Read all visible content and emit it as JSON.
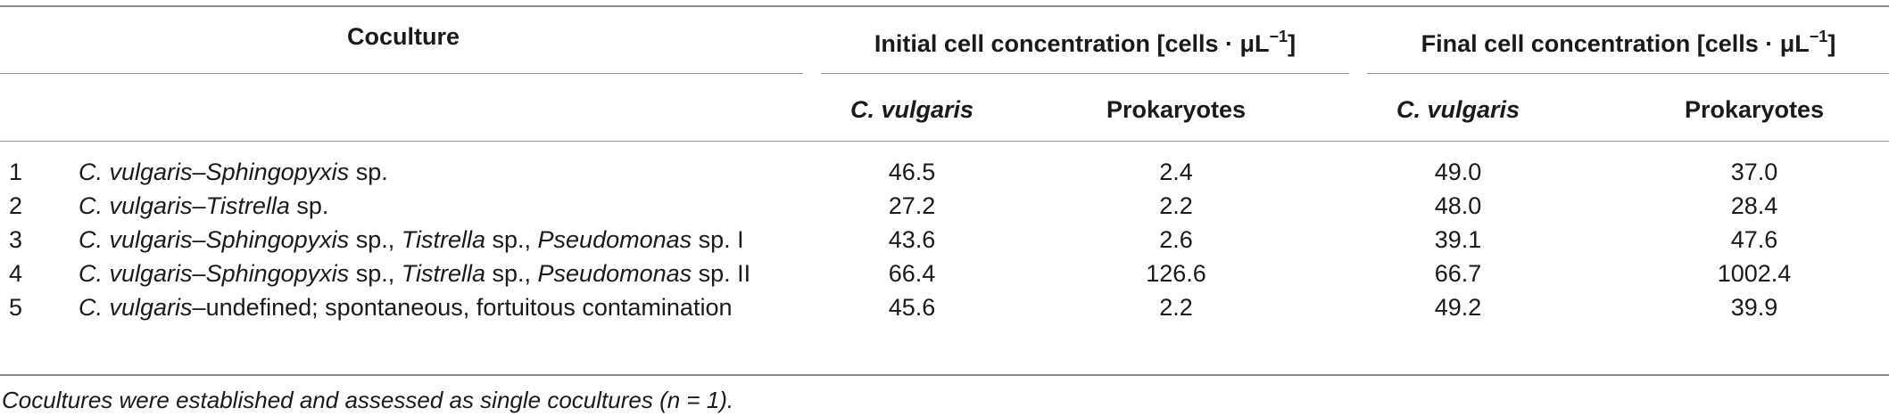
{
  "table": {
    "header_coculture": "Coculture",
    "header_initial": "Initial cell concentration [cells · μL",
    "header_final": "Final cell concentration [cells · μL",
    "header_unit_sup": "−1",
    "header_unit_close": "]",
    "sub_cvulgaris": "C. vulgaris",
    "sub_prokaryotes": "Prokaryotes",
    "rows": [
      {
        "num": "1",
        "parts": [
          {
            "t": "C. vulgaris",
            "i": true
          },
          {
            "t": "–",
            "i": false
          },
          {
            "t": "Sphingopyxis",
            "i": true
          },
          {
            "t": " sp.",
            "i": false
          }
        ],
        "init_cv": "46.5",
        "init_pro": "2.4",
        "final_cv": "49.0",
        "final_pro": "37.0"
      },
      {
        "num": "2",
        "parts": [
          {
            "t": "C. vulgaris",
            "i": true
          },
          {
            "t": "–",
            "i": false
          },
          {
            "t": "Tistrella",
            "i": true
          },
          {
            "t": " sp.",
            "i": false
          }
        ],
        "init_cv": "27.2",
        "init_pro": "2.2",
        "final_cv": "48.0",
        "final_pro": "28.4"
      },
      {
        "num": "3",
        "parts": [
          {
            "t": "C. vulgaris",
            "i": true
          },
          {
            "t": "–",
            "i": false
          },
          {
            "t": "Sphingopyxis",
            "i": true
          },
          {
            "t": " sp., ",
            "i": false
          },
          {
            "t": "Tistrella",
            "i": true
          },
          {
            "t": " sp., ",
            "i": false
          },
          {
            "t": "Pseudomonas",
            "i": true
          },
          {
            "t": " sp. I",
            "i": false
          }
        ],
        "init_cv": "43.6",
        "init_pro": "2.6",
        "final_cv": "39.1",
        "final_pro": "47.6"
      },
      {
        "num": "4",
        "parts": [
          {
            "t": "C. vulgaris",
            "i": true
          },
          {
            "t": "–",
            "i": false
          },
          {
            "t": "Sphingopyxis",
            "i": true
          },
          {
            "t": " sp., ",
            "i": false
          },
          {
            "t": "Tistrella",
            "i": true
          },
          {
            "t": " sp., ",
            "i": false
          },
          {
            "t": "Pseudomonas",
            "i": true
          },
          {
            "t": " sp. II",
            "i": false
          }
        ],
        "init_cv": "66.4",
        "init_pro": "126.6",
        "final_cv": "66.7",
        "final_pro": "1002.4"
      },
      {
        "num": "5",
        "parts": [
          {
            "t": "C. vulgaris",
            "i": true
          },
          {
            "t": "–undefined; spontaneous, fortuitous contamination",
            "i": false
          }
        ],
        "init_cv": "45.6",
        "init_pro": "2.2",
        "final_cv": "49.2",
        "final_pro": "39.9"
      }
    ],
    "footnote": "Cocultures were established and assessed as single cocultures (n = 1)."
  }
}
